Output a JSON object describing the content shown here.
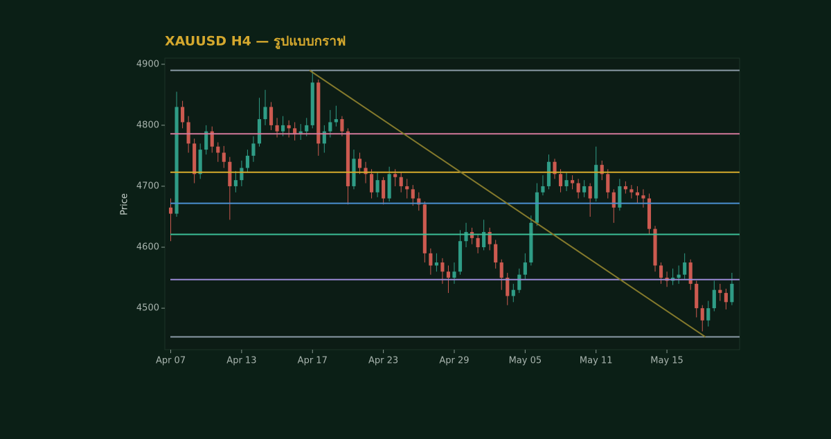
{
  "chart_data": {
    "type": "candlestick",
    "title": "XAUUSD H4 — รูปแบบกราฟ",
    "ylabel": "Price",
    "xlim": [
      -1,
      96.3
    ],
    "ylim": [
      4432,
      4910
    ],
    "xticks": [
      {
        "value": 0,
        "label": "Apr 07"
      },
      {
        "value": 12,
        "label": "Apr 13"
      },
      {
        "value": 24,
        "label": "Apr 17"
      },
      {
        "value": 36,
        "label": "Apr 23"
      },
      {
        "value": 48,
        "label": "Apr 29"
      },
      {
        "value": 60,
        "label": "May 05"
      },
      {
        "value": 72,
        "label": "May 11"
      },
      {
        "value": 84,
        "label": "May 15"
      }
    ],
    "yticks": [
      4500,
      4600,
      4700,
      4800,
      4900
    ],
    "up_color": "#2f9c86",
    "down_color": "#cc5a50",
    "open": [
      4665,
      4655,
      4830,
      4805,
      4770,
      4720,
      4760,
      4790,
      4765,
      4755,
      4740,
      4700,
      4710,
      4730,
      4750,
      4770,
      4810,
      4830,
      4800,
      4790,
      4800,
      4795,
      4785,
      4790,
      4800,
      4870,
      4770,
      4790,
      4805,
      4810,
      4790,
      4700,
      4745,
      4730,
      4720,
      4690,
      4710,
      4680,
      4720,
      4715,
      4700,
      4695,
      4680,
      4670,
      4590,
      4570,
      4575,
      4560,
      4550,
      4560,
      4610,
      4625,
      4615,
      4600,
      4625,
      4605,
      4575,
      4550,
      4520,
      4530,
      4555,
      4575,
      4640,
      4690,
      4700,
      4740,
      4720,
      4700,
      4710,
      4705,
      4690,
      4700,
      4680,
      4735,
      4720,
      4690,
      4665,
      4700,
      4695,
      4690,
      4685,
      4680,
      4630,
      4570,
      4550,
      4545,
      4550,
      4555,
      4575,
      4540,
      4500,
      4480,
      4500,
      4530,
      4525,
      4510
    ],
    "high": [
      4680,
      4855,
      4840,
      4815,
      4778,
      4770,
      4800,
      4798,
      4772,
      4766,
      4748,
      4725,
      4742,
      4760,
      4782,
      4845,
      4858,
      4838,
      4812,
      4815,
      4808,
      4805,
      4802,
      4812,
      4890,
      4875,
      4800,
      4825,
      4832,
      4815,
      4795,
      4760,
      4755,
      4740,
      4728,
      4722,
      4715,
      4732,
      4728,
      4722,
      4712,
      4702,
      4690,
      4675,
      4598,
      4590,
      4582,
      4570,
      4575,
      4628,
      4640,
      4632,
      4622,
      4645,
      4632,
      4612,
      4580,
      4558,
      4540,
      4565,
      4590,
      4652,
      4705,
      4718,
      4752,
      4745,
      4728,
      4722,
      4718,
      4712,
      4710,
      4705,
      4765,
      4742,
      4728,
      4695,
      4712,
      4708,
      4702,
      4700,
      4695,
      4688,
      4635,
      4575,
      4560,
      4565,
      4570,
      4590,
      4580,
      4545,
      4505,
      4512,
      4545,
      4540,
      4532,
      4558
    ],
    "low": [
      4610,
      4650,
      4795,
      4755,
      4705,
      4712,
      4752,
      4755,
      4740,
      4730,
      4645,
      4690,
      4700,
      4722,
      4740,
      4765,
      4800,
      4792,
      4780,
      4782,
      4780,
      4775,
      4776,
      4782,
      4795,
      4750,
      4755,
      4780,
      4798,
      4782,
      4670,
      4695,
      4720,
      4705,
      4680,
      4682,
      4670,
      4675,
      4700,
      4690,
      4680,
      4668,
      4660,
      4575,
      4555,
      4560,
      4540,
      4525,
      4540,
      4555,
      4600,
      4605,
      4590,
      4595,
      4595,
      4565,
      4530,
      4505,
      4510,
      4525,
      4548,
      4570,
      4635,
      4685,
      4695,
      4712,
      4690,
      4692,
      4695,
      4680,
      4682,
      4650,
      4675,
      4710,
      4680,
      4640,
      4660,
      4688,
      4680,
      4672,
      4665,
      4620,
      4560,
      4540,
      4535,
      4538,
      4540,
      4548,
      4530,
      4485,
      4462,
      4470,
      4495,
      4512,
      4498,
      4505
    ],
    "close": [
      4655,
      4830,
      4805,
      4770,
      4720,
      4760,
      4790,
      4765,
      4755,
      4740,
      4700,
      4710,
      4730,
      4750,
      4770,
      4810,
      4830,
      4800,
      4790,
      4800,
      4795,
      4785,
      4790,
      4800,
      4870,
      4770,
      4790,
      4805,
      4810,
      4790,
      4700,
      4745,
      4730,
      4720,
      4690,
      4710,
      4680,
      4720,
      4715,
      4700,
      4695,
      4680,
      4670,
      4590,
      4570,
      4575,
      4560,
      4550,
      4560,
      4610,
      4625,
      4615,
      4600,
      4625,
      4605,
      4575,
      4550,
      4520,
      4530,
      4555,
      4575,
      4640,
      4690,
      4700,
      4740,
      4720,
      4700,
      4710,
      4705,
      4690,
      4700,
      4680,
      4735,
      4720,
      4690,
      4665,
      4700,
      4695,
      4690,
      4685,
      4680,
      4630,
      4570,
      4550,
      4545,
      4550,
      4555,
      4575,
      4540,
      4500,
      4480,
      4500,
      4530,
      4525,
      4510,
      4540
    ],
    "hlines": [
      {
        "value": 4890,
        "color": "#8a9aa6"
      },
      {
        "value": 4786,
        "color": "#d2789a"
      },
      {
        "value": 4723,
        "color": "#d6aa2c"
      },
      {
        "value": 4672,
        "color": "#4a8fd0"
      },
      {
        "value": 4621,
        "color": "#3cbf98"
      },
      {
        "value": 4547,
        "color": "#9a8ad6"
      },
      {
        "value": 4453,
        "color": "#8a9aa6"
      }
    ],
    "trendline": {
      "x": [
        23.5,
        90.5
      ],
      "y": [
        4890,
        4453
      ],
      "color": "#857a2c"
    }
  }
}
